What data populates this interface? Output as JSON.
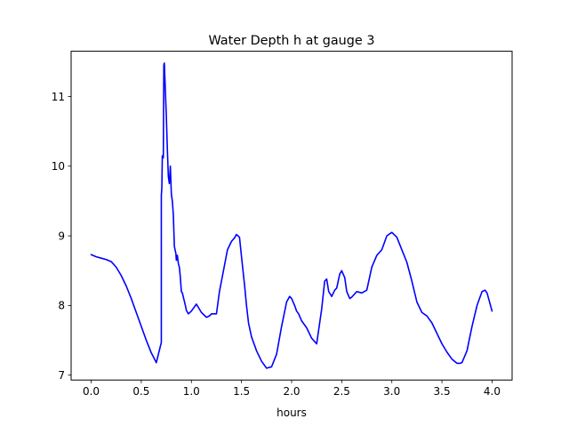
{
  "chart_data": {
    "type": "line",
    "title": "Water Depth h at gauge 3",
    "xlabel": "hours",
    "ylabel": "",
    "xlim": [
      -0.2,
      4.2
    ],
    "ylim": [
      6.93,
      11.65
    ],
    "x_ticks": [
      0.0,
      0.5,
      1.0,
      1.5,
      2.0,
      2.5,
      3.0,
      3.5,
      4.0
    ],
    "x_tick_labels": [
      "0.0",
      "0.5",
      "1.0",
      "1.5",
      "2.0",
      "2.5",
      "3.0",
      "3.5",
      "4.0"
    ],
    "y_ticks": [
      7,
      8,
      9,
      10,
      11
    ],
    "y_tick_labels": [
      "7",
      "8",
      "9",
      "10",
      "11"
    ],
    "grid": false,
    "series": [
      {
        "color": "#0000ff",
        "x": [
          0.0,
          0.05,
          0.1,
          0.15,
          0.2,
          0.25,
          0.3,
          0.35,
          0.4,
          0.45,
          0.5,
          0.55,
          0.6,
          0.65,
          0.7,
          0.7,
          0.705,
          0.71,
          0.72,
          0.725,
          0.73,
          0.74,
          0.745,
          0.75,
          0.76,
          0.77,
          0.78,
          0.79,
          0.8,
          0.81,
          0.82,
          0.83,
          0.84,
          0.845,
          0.85,
          0.86,
          0.87,
          0.88,
          0.89,
          0.9,
          0.91,
          0.92,
          0.93,
          0.94,
          0.95,
          0.97,
          1.0,
          1.05,
          1.1,
          1.15,
          1.18,
          1.2,
          1.25,
          1.28,
          1.32,
          1.36,
          1.4,
          1.43,
          1.45,
          1.48,
          1.5,
          1.53,
          1.55,
          1.57,
          1.6,
          1.65,
          1.7,
          1.75,
          1.8,
          1.85,
          1.9,
          1.95,
          1.98,
          2.0,
          2.03,
          2.05,
          2.07,
          2.1,
          2.15,
          2.2,
          2.25,
          2.3,
          2.33,
          2.35,
          2.37,
          2.4,
          2.43,
          2.45,
          2.48,
          2.5,
          2.53,
          2.55,
          2.58,
          2.6,
          2.65,
          2.7,
          2.75,
          2.8,
          2.85,
          2.9,
          2.95,
          3.0,
          3.05,
          3.1,
          3.15,
          3.2,
          3.25,
          3.3,
          3.35,
          3.4,
          3.45,
          3.5,
          3.55,
          3.6,
          3.65,
          3.68,
          3.7,
          3.75,
          3.8,
          3.85,
          3.9,
          3.93,
          3.95,
          4.0
        ],
        "y": [
          8.73,
          8.7,
          8.68,
          8.66,
          8.63,
          8.55,
          8.43,
          8.28,
          8.1,
          7.9,
          7.7,
          7.5,
          7.32,
          7.18,
          7.47,
          9.58,
          9.68,
          10.15,
          10.12,
          11.45,
          11.48,
          11.1,
          10.9,
          10.72,
          10.25,
          9.85,
          9.75,
          10.0,
          9.6,
          9.5,
          9.3,
          8.85,
          8.78,
          8.75,
          8.65,
          8.72,
          8.6,
          8.55,
          8.4,
          8.2,
          8.18,
          8.12,
          8.06,
          8.0,
          7.93,
          7.88,
          7.92,
          8.02,
          7.9,
          7.83,
          7.85,
          7.88,
          7.88,
          8.2,
          8.5,
          8.8,
          8.92,
          8.97,
          9.02,
          8.98,
          8.7,
          8.3,
          8.0,
          7.75,
          7.55,
          7.35,
          7.2,
          7.1,
          7.12,
          7.3,
          7.7,
          8.05,
          8.13,
          8.1,
          8.0,
          7.92,
          7.88,
          7.78,
          7.68,
          7.53,
          7.45,
          7.95,
          8.35,
          8.38,
          8.2,
          8.13,
          8.22,
          8.25,
          8.45,
          8.5,
          8.4,
          8.2,
          8.1,
          8.12,
          8.2,
          8.18,
          8.22,
          8.55,
          8.72,
          8.8,
          9.0,
          9.05,
          8.98,
          8.8,
          8.62,
          8.35,
          8.05,
          7.9,
          7.85,
          7.75,
          7.6,
          7.45,
          7.33,
          7.23,
          7.17,
          7.17,
          7.18,
          7.35,
          7.7,
          8.0,
          8.2,
          8.22,
          8.18,
          7.92
        ]
      }
    ]
  }
}
